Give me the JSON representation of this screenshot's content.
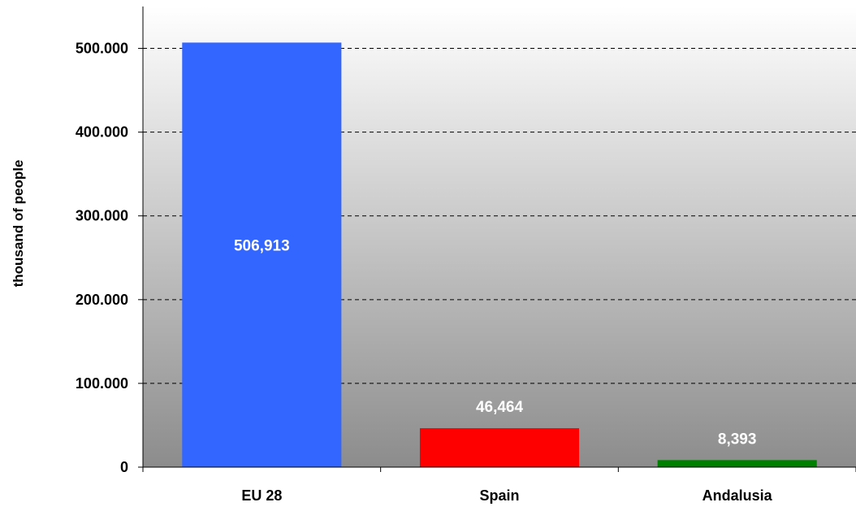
{
  "chart_data": {
    "type": "bar",
    "title": "",
    "xlabel": "",
    "ylabel": "thousand of people",
    "categories": [
      "EU 28",
      "Spain",
      "Andalusia"
    ],
    "values": [
      506913,
      46464,
      8393
    ],
    "data_labels": [
      "506,913",
      "46,464",
      "8,393"
    ],
    "bar_colors": [
      "#3366ff",
      "#ff0000",
      "#008000"
    ],
    "label_color": "#ffffff",
    "ylim": [
      0,
      550000
    ],
    "yticks": [
      0,
      100000,
      200000,
      300000,
      400000,
      500000
    ],
    "ytick_labels": [
      "0",
      "100.000",
      "200.000",
      "300.000",
      "400.000",
      "500.000"
    ],
    "grid": true,
    "grid_style": "dashed",
    "background": "gradient white to gray",
    "legend": "none"
  }
}
